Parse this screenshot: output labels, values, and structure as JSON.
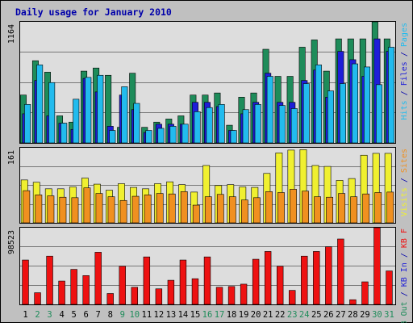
{
  "colors": {
    "background": "#c0c0c0",
    "plot_background": "#dddddd",
    "grid": "#777777",
    "title": "#0000aa",
    "pages": "#1e8c5a",
    "files": "#1e1ed8",
    "hits": "#22bbee",
    "visits": "#f0f030",
    "sites": "#f09020",
    "kb_f": "#ee1111",
    "kb_in": "#1e1ed8",
    "kb_out": "#1e8c5a",
    "weekend_day": "#1e8c5a",
    "weekday_day": "#000000"
  },
  "chart_data": {
    "type": "bar",
    "title": "Daily usage for January 2010",
    "categories": [
      "1",
      "2",
      "3",
      "4",
      "5",
      "6",
      "7",
      "8",
      "9",
      "10",
      "11",
      "12",
      "13",
      "14",
      "15",
      "16",
      "17",
      "18",
      "19",
      "20",
      "21",
      "22",
      "23",
      "24",
      "25",
      "26",
      "27",
      "28",
      "29",
      "30",
      "31"
    ],
    "weekend_days": [
      2,
      3,
      9,
      10,
      16,
      17,
      23,
      24,
      30,
      31
    ],
    "panels": [
      {
        "name": "requests",
        "ymax_label": "1164",
        "ymax": 1164,
        "right_labels": [
          {
            "text": "Hits",
            "color_key": "hits"
          },
          {
            "text": " / ",
            "color_key": "title"
          },
          {
            "text": "Files",
            "color_key": "files"
          },
          {
            "text": " / ",
            "color_key": "title"
          },
          {
            "text": "Pages",
            "color_key": "hits"
          }
        ],
        "series": [
          {
            "name": "Pages",
            "color_key": "pages",
            "values": [
              460,
              790,
              680,
              260,
              200,
              690,
              720,
              650,
              150,
              670,
              150,
              200,
              230,
              260,
              460,
              460,
              480,
              170,
              440,
              480,
              900,
              640,
              640,
              920,
              990,
              690,
              1000,
              1000,
              1000,
              1164,
              1000
            ]
          },
          {
            "name": "Files",
            "color_key": "files",
            "values": [
              280,
              600,
              260,
              190,
              130,
              620,
              490,
              160,
              460,
              320,
              100,
              180,
              180,
              180,
              390,
              390,
              350,
              120,
              280,
              390,
              670,
              390,
              390,
              600,
              700,
              440,
              880,
              800,
              640,
              1000,
              880
            ]
          },
          {
            "name": "Hits",
            "color_key": "hits",
            "values": [
              370,
              750,
              580,
              190,
              420,
              630,
              650,
              120,
              540,
              380,
              120,
              140,
              160,
              180,
              300,
              340,
              370,
              120,
              320,
              370,
              640,
              360,
              330,
              570,
              750,
              500,
              570,
              760,
              730,
              560,
              920
            ]
          }
        ]
      },
      {
        "name": "visitors",
        "ymax_label": "161",
        "ymax": 161,
        "right_labels": [
          {
            "text": "Visits",
            "color_key": "visits"
          },
          {
            "text": " / ",
            "color_key": "title"
          },
          {
            "text": "Sites",
            "color_key": "sites"
          }
        ],
        "series": [
          {
            "name": "Visits",
            "color_key": "visits",
            "values": [
              92,
              87,
              73,
              73,
              77,
              96,
              83,
              70,
              84,
              76,
              73,
              84,
              88,
              82,
              66,
              123,
              80,
              82,
              77,
              76,
              106,
              150,
              156,
              157,
              123,
              121,
              91,
              95,
              145,
              149,
              149
            ]
          },
          {
            "name": "Sites",
            "color_key": "sites",
            "values": [
              69,
              60,
              58,
              55,
              54,
              75,
              63,
              56,
              48,
              57,
              60,
              63,
              62,
              67,
              38,
              56,
              61,
              56,
              49,
              54,
              67,
              65,
              72,
              68,
              56,
              55,
              63,
              56,
              62,
              65,
              66
            ]
          }
        ]
      },
      {
        "name": "traffic",
        "ymax_label": "98523",
        "ymax": 98523,
        "right_labels": [
          {
            "text": "KB Out",
            "color_key": "kb_out"
          },
          {
            "text": " / ",
            "color_key": "title"
          },
          {
            "text": "KB In",
            "color_key": "kb_in"
          },
          {
            "text": " / ",
            "color_key": "title"
          },
          {
            "text": "KB F",
            "color_key": "kb_f"
          }
        ],
        "series": [
          {
            "name": "KB F",
            "color_key": "kb_f",
            "values": [
              57000,
              15000,
              62000,
              30000,
              45000,
              37000,
              67000,
              14000,
              49000,
              22000,
              61000,
              20000,
              31000,
              57000,
              33000,
              61000,
              22000,
              23000,
              26000,
              58000,
              68000,
              49000,
              18000,
              62000,
              68000,
              74000,
              84000,
              6000,
              29000,
              98523,
              43000
            ]
          }
        ]
      }
    ]
  }
}
